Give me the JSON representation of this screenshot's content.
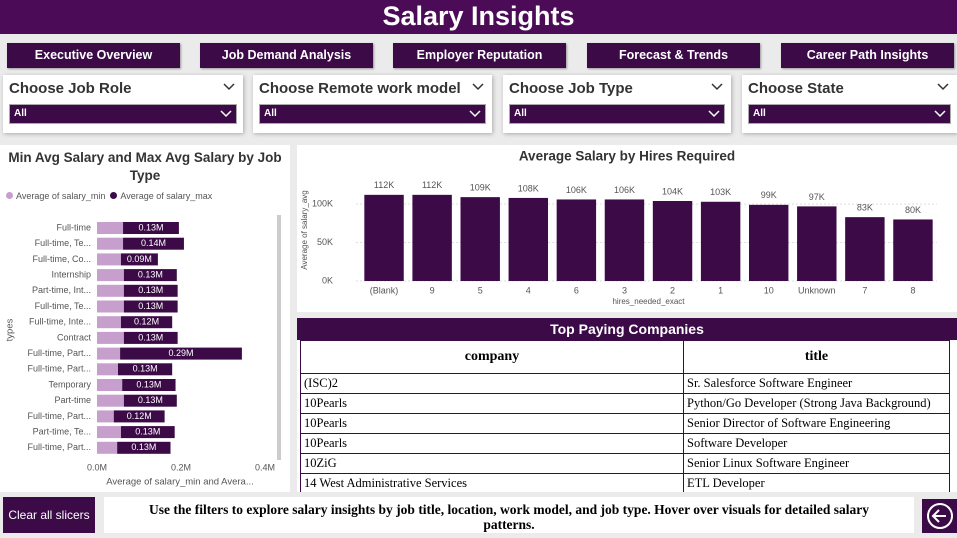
{
  "header": {
    "title": "Salary Insights"
  },
  "nav": [
    "Executive Overview",
    "Job Demand Analysis",
    "Employer Reputation",
    "Forecast & Trends",
    "Career Path Insights"
  ],
  "slicers": [
    {
      "label": "Choose Job Role",
      "value": "All"
    },
    {
      "label": "Choose Remote work model",
      "value": "All"
    },
    {
      "label": "Choose Job Type",
      "value": "All"
    },
    {
      "label": "Choose State",
      "value": "All"
    }
  ],
  "chart_data": [
    {
      "type": "bar",
      "orientation": "horizontal",
      "stacked": true,
      "title": "Min Avg Salary and Max Avg Salary by Job Type",
      "x_label": "Average of salary_min and Avera...",
      "y_label": "types",
      "categories": [
        "Full-time",
        "Full-time, Te...",
        "Full-time, Co...",
        "Internship",
        "Part-time, Int...",
        "Full-time, Te...",
        "Full-time, Inte...",
        "Contract",
        "Full-time, Part...",
        "Full-time, Part...",
        "Temporary",
        "Part-time",
        "Full-time, Part...",
        "Part-time, Te...",
        "Full-time, Part..."
      ],
      "series": [
        {
          "name": "Average of salary_min",
          "color": "#c79fcd",
          "values": [
            62000,
            62000,
            57000,
            64000,
            64000,
            64000,
            57000,
            64000,
            55000,
            50000,
            60000,
            64000,
            40000,
            57000,
            48000
          ]
        },
        {
          "name": "Average of salary_max",
          "color": "#3b0a47",
          "values": [
            133000,
            145000,
            88000,
            126000,
            128000,
            128000,
            122000,
            128000,
            290000,
            129000,
            127000,
            126000,
            121000,
            128000,
            127000
          ],
          "value_labels": [
            "0.13M",
            "0.14M",
            "0.09M",
            "0.13M",
            "0.13M",
            "0.13M",
            "0.12M",
            "0.13M",
            "0.29M",
            "0.13M",
            "0.13M",
            "0.13M",
            "0.12M",
            "0.13M",
            "0.13M"
          ]
        }
      ],
      "xlim": [
        0,
        400000
      ],
      "xticks": [
        {
          "value": 0,
          "label": "0.0M"
        },
        {
          "value": 200000,
          "label": "0.2M"
        },
        {
          "value": 400000,
          "label": "0.4M"
        }
      ]
    },
    {
      "type": "bar",
      "title": "Average Salary by Hires Required",
      "x_label": "hires_needed_exact",
      "y_label": "Average of salary_avg",
      "categories": [
        "(Blank)",
        "9",
        "5",
        "4",
        "6",
        "3",
        "2",
        "1",
        "10",
        "Unknown",
        "7",
        "8"
      ],
      "values": [
        112000,
        112000,
        109000,
        108000,
        106000,
        106000,
        104000,
        103000,
        99000,
        97000,
        83000,
        80000
      ],
      "value_labels": [
        "112K",
        "112K",
        "109K",
        "108K",
        "106K",
        "106K",
        "104K",
        "103K",
        "99K",
        "97K",
        "83K",
        "80K"
      ],
      "color": "#3b0a47",
      "ylim": [
        0,
        130000
      ],
      "yticks": [
        {
          "value": 0,
          "label": "0K"
        },
        {
          "value": 50000,
          "label": "50K"
        },
        {
          "value": 100000,
          "label": "100K"
        }
      ],
      "grid": true
    }
  ],
  "table": {
    "title": "Top Paying Companies",
    "columns": [
      "company",
      "title"
    ],
    "rows": [
      [
        "(ISC)2",
        "Sr. Salesforce Software Engineer"
      ],
      [
        "10Pearls",
        "Python/Go Developer (Strong Java Background)"
      ],
      [
        "10Pearls",
        "Senior Director of Software Engineering"
      ],
      [
        "10Pearls",
        "Software Developer"
      ],
      [
        "10ZiG",
        "Senior Linux Software Engineer"
      ],
      [
        "14 West Administrative Services",
        "ETL Developer"
      ]
    ]
  },
  "footer": {
    "button": "Clear all slicers",
    "note": "Use the filters to explore salary insights by job title, location, work model, and job type. Hover over visuals for detailed salary patterns."
  }
}
